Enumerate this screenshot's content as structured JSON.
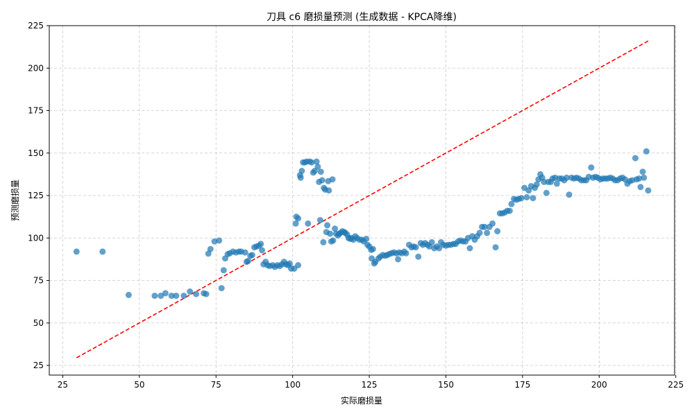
{
  "chart_data": {
    "type": "scatter",
    "title": "刀具 c6 磨损量预测 (生成数据 - KPCA降维)",
    "xlabel": "实际磨损量",
    "ylabel": "预测磨损量",
    "xlim": [
      20.6,
      224.6
    ],
    "ylim": [
      19.3,
      225
    ],
    "xticks": [
      25,
      50,
      75,
      100,
      125,
      150,
      175,
      200,
      225
    ],
    "yticks": [
      25,
      50,
      75,
      100,
      125,
      150,
      175,
      200,
      225
    ],
    "grid": true,
    "colors": {
      "points": "#1f77b4",
      "reference_line": "#ff0000"
    },
    "reference_line": {
      "x": [
        29.5,
        216
      ],
      "y": [
        29.5,
        216
      ]
    },
    "series": [
      {
        "values": [
          [
            29.5,
            92
          ],
          [
            38,
            92
          ],
          [
            46.5,
            66.5
          ],
          [
            55,
            66
          ],
          [
            57,
            66
          ],
          [
            58.5,
            67.5
          ],
          [
            60.5,
            66
          ],
          [
            62,
            66
          ],
          [
            64.5,
            66
          ],
          [
            66.5,
            68.5
          ],
          [
            68.5,
            67
          ],
          [
            71,
            67.5
          ],
          [
            71.8,
            67
          ],
          [
            72.5,
            90.8
          ],
          [
            73.2,
            93.5
          ],
          [
            74.5,
            98
          ],
          [
            76,
            98.5
          ],
          [
            76.8,
            70.5
          ],
          [
            77.5,
            81
          ],
          [
            78,
            88
          ],
          [
            78.8,
            90.5
          ],
          [
            79.5,
            91
          ],
          [
            80.5,
            92
          ],
          [
            81.5,
            91.5
          ],
          [
            82.5,
            92
          ],
          [
            83.2,
            92
          ],
          [
            84.5,
            91.5
          ],
          [
            85,
            86
          ],
          [
            85.5,
            86.5
          ],
          [
            86.2,
            89.5
          ],
          [
            86.8,
            90
          ],
          [
            87.5,
            94.5
          ],
          [
            88.2,
            95
          ],
          [
            89,
            95.5
          ],
          [
            89.6,
            96.5
          ],
          [
            90,
            92.8
          ],
          [
            90.5,
            84.5
          ],
          [
            91.2,
            86
          ],
          [
            91.8,
            84
          ],
          [
            92.5,
            83.5
          ],
          [
            93.5,
            84
          ],
          [
            94.2,
            83
          ],
          [
            95,
            84
          ],
          [
            95.8,
            83.5
          ],
          [
            96.5,
            84.5
          ],
          [
            97.2,
            86
          ],
          [
            97.8,
            84.5
          ],
          [
            98.5,
            84
          ],
          [
            99,
            85
          ],
          [
            99.5,
            82
          ],
          [
            100.5,
            82
          ],
          [
            101.8,
            84
          ],
          [
            101,
            108.5
          ],
          [
            101.2,
            112.5
          ],
          [
            101.8,
            111.5
          ],
          [
            102.4,
            137
          ],
          [
            102.6,
            135.5
          ],
          [
            103,
            139.5
          ],
          [
            103.4,
            144.5
          ],
          [
            104,
            144.5
          ],
          [
            104.6,
            145
          ],
          [
            105,
            108.5
          ],
          [
            105.6,
            145
          ],
          [
            106.2,
            144.5
          ],
          [
            106.7,
            138.5
          ],
          [
            107.2,
            139.5
          ],
          [
            107.8,
            145
          ],
          [
            108.2,
            142
          ],
          [
            108.6,
            133
          ],
          [
            109,
            110.5
          ],
          [
            109.2,
            139
          ],
          [
            109.6,
            134
          ],
          [
            110,
            97.5
          ],
          [
            110.2,
            129.5
          ],
          [
            110.6,
            128.5
          ],
          [
            111,
            103.5
          ],
          [
            111.3,
            107.5
          ],
          [
            111.6,
            133.5
          ],
          [
            111.8,
            128
          ],
          [
            112.2,
            102.5
          ],
          [
            112.6,
            98
          ],
          [
            113,
            134.5
          ],
          [
            113.2,
            98.5
          ],
          [
            113.8,
            105.5
          ],
          [
            114.2,
            102.5
          ],
          [
            114.8,
            101.5
          ],
          [
            115.2,
            102.5
          ],
          [
            115.6,
            103
          ],
          [
            116.2,
            104
          ],
          [
            116.8,
            103.5
          ],
          [
            117.2,
            103
          ],
          [
            117.8,
            102
          ],
          [
            118.2,
            100
          ],
          [
            118.8,
            99.5
          ],
          [
            119.2,
            100
          ],
          [
            119.8,
            99
          ],
          [
            120.4,
            101
          ],
          [
            121,
            100
          ],
          [
            121.8,
            99
          ],
          [
            122.6,
            99
          ],
          [
            123.2,
            98
          ],
          [
            124,
            99.5
          ],
          [
            124.4,
            96
          ],
          [
            125,
            95
          ],
          [
            125.6,
            93
          ],
          [
            125.8,
            88
          ],
          [
            126.2,
            93.5
          ],
          [
            126.6,
            85
          ],
          [
            127,
            86
          ],
          [
            128,
            88
          ],
          [
            128.6,
            89
          ],
          [
            129.4,
            90
          ],
          [
            130.2,
            89.5
          ],
          [
            130.8,
            90
          ],
          [
            131.5,
            90.5
          ],
          [
            132.2,
            91
          ],
          [
            133,
            91.5
          ],
          [
            133.8,
            91
          ],
          [
            134.4,
            87.5
          ],
          [
            134.8,
            91.5
          ],
          [
            135.6,
            91
          ],
          [
            136.4,
            92
          ],
          [
            137,
            91
          ],
          [
            138,
            96
          ],
          [
            138.8,
            94.5
          ],
          [
            139.5,
            95
          ],
          [
            140.2,
            94.5
          ],
          [
            141,
            89
          ],
          [
            141.8,
            97
          ],
          [
            142.5,
            96
          ],
          [
            143.2,
            97
          ],
          [
            144,
            96
          ],
          [
            144.6,
            95
          ],
          [
            145.4,
            97.5
          ],
          [
            146.2,
            94
          ],
          [
            147,
            95
          ],
          [
            147.8,
            94
          ],
          [
            148.4,
            97.5
          ],
          [
            149.2,
            96
          ],
          [
            150,
            95.5
          ],
          [
            150.8,
            96
          ],
          [
            151.6,
            96
          ],
          [
            152.5,
            96.5
          ],
          [
            153.2,
            96.5
          ],
          [
            154,
            98
          ],
          [
            154.8,
            98.5
          ],
          [
            155.6,
            98
          ],
          [
            156.4,
            98
          ],
          [
            157.2,
            100
          ],
          [
            157.8,
            94
          ],
          [
            158.6,
            101
          ],
          [
            159.4,
            99
          ],
          [
            160.2,
            101
          ],
          [
            161,
            103
          ],
          [
            161.8,
            106.5
          ],
          [
            162.6,
            106.5
          ],
          [
            163.4,
            103
          ],
          [
            164.2,
            106.5
          ],
          [
            165.2,
            108.5
          ],
          [
            166.2,
            94.5
          ],
          [
            166.8,
            104
          ],
          [
            167.6,
            114.5
          ],
          [
            168.4,
            114.5
          ],
          [
            169.2,
            115
          ],
          [
            170,
            116
          ],
          [
            170.8,
            116
          ],
          [
            171.4,
            120
          ],
          [
            172.2,
            123
          ],
          [
            173,
            122.5
          ],
          [
            173.8,
            123
          ],
          [
            174.6,
            123.5
          ],
          [
            175.6,
            129.5
          ],
          [
            176.4,
            124
          ],
          [
            177,
            128
          ],
          [
            177.8,
            130.5
          ],
          [
            178.4,
            123.5
          ],
          [
            179,
            129.5
          ],
          [
            179.6,
            131.5
          ],
          [
            180.2,
            134.5
          ],
          [
            180.8,
            137.5
          ],
          [
            181.4,
            135.5
          ],
          [
            182,
            133
          ],
          [
            182.8,
            126.5
          ],
          [
            183.4,
            133
          ],
          [
            184.2,
            133
          ],
          [
            184.8,
            135
          ],
          [
            185.6,
            135.5
          ],
          [
            186.2,
            132
          ],
          [
            187,
            135
          ],
          [
            187.8,
            135
          ],
          [
            188.6,
            134
          ],
          [
            189.4,
            135.5
          ],
          [
            190.2,
            125.5
          ],
          [
            191,
            135.5
          ],
          [
            191.8,
            135
          ],
          [
            192.6,
            135.5
          ],
          [
            193.4,
            135
          ],
          [
            194.2,
            134
          ],
          [
            195,
            134
          ],
          [
            195.8,
            134
          ],
          [
            196.6,
            136
          ],
          [
            197.4,
            141.5
          ],
          [
            198,
            135.5
          ],
          [
            198.8,
            136
          ],
          [
            199.6,
            135.5
          ],
          [
            200.4,
            134.5
          ],
          [
            201.2,
            135
          ],
          [
            202,
            135
          ],
          [
            202.8,
            135
          ],
          [
            203.6,
            135.5
          ],
          [
            204.4,
            135
          ],
          [
            205.2,
            134
          ],
          [
            206,
            134
          ],
          [
            206.8,
            135
          ],
          [
            207.6,
            135.5
          ],
          [
            208.4,
            134.5
          ],
          [
            209.2,
            132
          ],
          [
            210,
            133.5
          ],
          [
            210.8,
            134
          ],
          [
            211.8,
            147
          ],
          [
            212.2,
            134.5
          ],
          [
            213,
            135
          ],
          [
            213.5,
            130
          ],
          [
            214.2,
            139
          ],
          [
            214.6,
            135.5
          ],
          [
            215.4,
            151
          ],
          [
            216,
            128
          ]
        ]
      }
    ]
  }
}
